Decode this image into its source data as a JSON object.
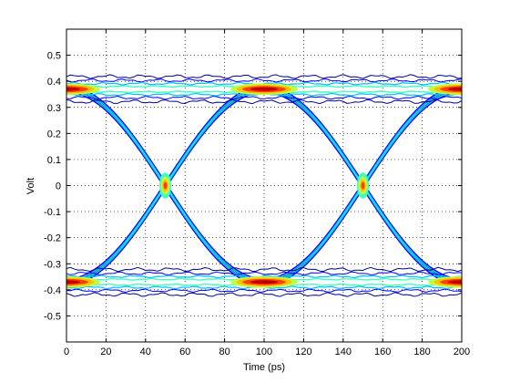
{
  "chart_data": {
    "type": "contour",
    "title": "",
    "xlabel": "Time (ps)",
    "ylabel": "Volt",
    "xlim": [
      0,
      200
    ],
    "ylim": [
      -0.6,
      0.6
    ],
    "xticks": [
      0,
      20,
      40,
      60,
      80,
      100,
      120,
      140,
      160,
      180,
      200
    ],
    "yticks": [
      -0.5,
      -0.4,
      -0.3,
      -0.2,
      -0.1,
      0,
      0.1,
      0.2,
      0.3,
      0.4,
      0.5
    ],
    "ytick_labels": [
      "-0.5",
      "-0.4",
      "-0.3",
      "-0.2",
      "-0.1",
      "0",
      "0.1",
      "0.2",
      "0.3",
      "0.4",
      "0.5"
    ],
    "grid": true,
    "grid_style": "dotted",
    "bit_period_ps": 100,
    "eye_crossings_ps": [
      50,
      150
    ],
    "logic_levels_v": [
      0.37,
      -0.37
    ],
    "level_spread_v": 0.03,
    "eye_height_v": 0.6,
    "colormap": [
      "#00008f",
      "#0000ff",
      "#00bfff",
      "#40ffbf",
      "#bfff40",
      "#ffbf00",
      "#ff4000",
      "#bf0000"
    ]
  }
}
